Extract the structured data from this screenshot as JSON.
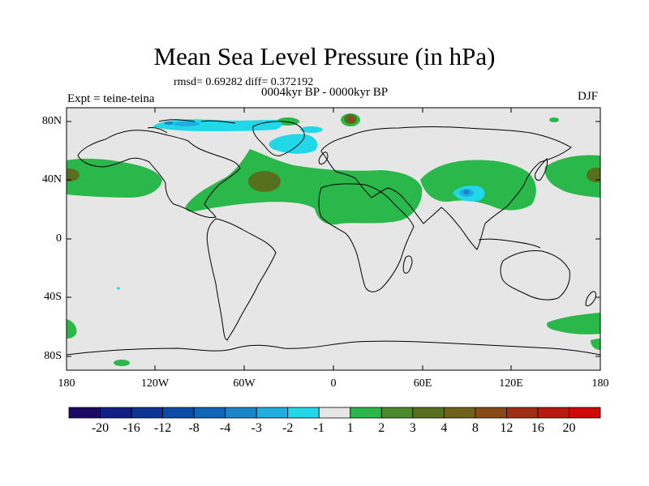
{
  "title": "Mean Sea Level Pressure (in hPa)",
  "stats": "rmsd= 0.69282 diff= 0.372192",
  "period": "0004kyr BP - 0000kyr BP",
  "experiment": "Expt = teine-teina",
  "season": "DJF",
  "lat_labels": [
    "80N",
    "40N",
    "0",
    "40S",
    "80S"
  ],
  "lon_labels": [
    "180",
    "120W",
    "60W",
    "0",
    "60E",
    "120E",
    "180"
  ],
  "colorbar": {
    "labels": [
      "-20",
      "-16",
      "-12",
      "-8",
      "-4",
      "-3",
      "-2",
      "-1",
      "1",
      "2",
      "3",
      "4",
      "8",
      "12",
      "16",
      "20"
    ],
    "colors": [
      "#1a0a66",
      "#101f86",
      "#0c3495",
      "#0a4ca8",
      "#1066b8",
      "#1a86c8",
      "#20aee0",
      "#20d8e8",
      "#e6e6e6",
      "#2ab84a",
      "#4a8a2a",
      "#56701e",
      "#70601a",
      "#8a4a16",
      "#a02e12",
      "#b81a10",
      "#d00808"
    ]
  },
  "colors": {
    "map_background": "#e6e6e6",
    "positive_1_2": "#2ab84a",
    "positive_3_4": "#56701e",
    "positive_8_12": "#8a4a16",
    "negative_2_1": "#20d8e8",
    "negative_3_2": "#20aee0",
    "negative_4_3": "#1a86c8"
  }
}
